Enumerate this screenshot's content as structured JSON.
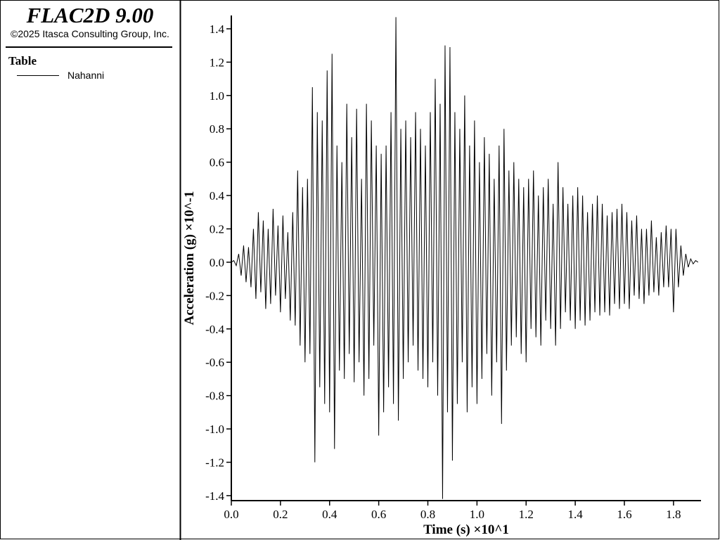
{
  "chart_data": {
    "type": "line",
    "title": "FLAC2D 9.00",
    "subtitle": "©2025 Itasca Consulting Group, Inc.",
    "legend_title": "Table",
    "xlabel": "Time (s) ×10^1",
    "ylabel": "Acceleration (g) ×10^-1",
    "xlim": [
      0,
      1.912
    ],
    "ylim": [
      -1.43,
      1.48
    ],
    "xticks": [
      {
        "value": 0,
        "label": "0.0"
      },
      0.2,
      0.4,
      0.6,
      0.8,
      {
        "value": 1,
        "label": "1.0"
      },
      1.2,
      1.4,
      1.6,
      1.8
    ],
    "yticks": [
      -1.4,
      -1.2,
      {
        "value": -1,
        "label": "-1.0"
      },
      -0.8,
      -0.6,
      -0.4,
      -0.2,
      {
        "value": 0,
        "label": "0.0"
      },
      0.2,
      0.4,
      0.6,
      0.8,
      {
        "value": 1,
        "label": "1.0"
      },
      1.2,
      1.4
    ],
    "x": [
      0,
      0.01,
      0.02,
      0.03,
      0.04,
      0.05,
      0.06,
      0.07,
      0.08,
      0.09,
      0.1,
      0.11,
      0.12,
      0.13,
      0.14,
      0.15,
      0.16,
      0.17,
      0.18,
      0.19,
      0.2,
      0.21,
      0.22,
      0.23,
      0.24,
      0.25,
      0.26,
      0.27,
      0.28,
      0.29,
      0.3,
      0.31,
      0.32,
      0.33,
      0.34,
      0.35,
      0.36,
      0.37,
      0.38,
      0.39,
      0.4,
      0.41,
      0.42,
      0.43,
      0.44,
      0.45,
      0.46,
      0.47,
      0.48,
      0.49,
      0.5,
      0.51,
      0.52,
      0.53,
      0.54,
      0.55,
      0.56,
      0.57,
      0.58,
      0.59,
      0.6,
      0.61,
      0.62,
      0.63,
      0.64,
      0.65,
      0.66,
      0.67,
      0.68,
      0.69,
      0.7,
      0.71,
      0.72,
      0.73,
      0.74,
      0.75,
      0.76,
      0.77,
      0.78,
      0.79,
      0.8,
      0.81,
      0.82,
      0.83,
      0.84,
      0.85,
      0.86,
      0.87,
      0.88,
      0.89,
      0.9,
      0.91,
      0.92,
      0.93,
      0.94,
      0.95,
      0.96,
      0.97,
      0.98,
      0.99,
      1,
      1.01,
      1.02,
      1.03,
      1.04,
      1.05,
      1.06,
      1.07,
      1.08,
      1.09,
      1.1,
      1.11,
      1.12,
      1.13,
      1.14,
      1.15,
      1.16,
      1.17,
      1.18,
      1.19,
      1.2,
      1.21,
      1.22,
      1.23,
      1.24,
      1.25,
      1.26,
      1.27,
      1.28,
      1.29,
      1.3,
      1.31,
      1.32,
      1.33,
      1.34,
      1.35,
      1.36,
      1.37,
      1.38,
      1.39,
      1.4,
      1.41,
      1.42,
      1.43,
      1.44,
      1.45,
      1.46,
      1.47,
      1.48,
      1.49,
      1.5,
      1.51,
      1.52,
      1.53,
      1.54,
      1.55,
      1.56,
      1.57,
      1.58,
      1.59,
      1.6,
      1.61,
      1.62,
      1.63,
      1.64,
      1.65,
      1.66,
      1.67,
      1.68,
      1.69,
      1.7,
      1.71,
      1.72,
      1.73,
      1.74,
      1.75,
      1.76,
      1.77,
      1.78,
      1.79,
      1.8,
      1.81,
      1.82,
      1.83,
      1.84,
      1.85,
      1.86,
      1.87,
      1.88,
      1.89,
      1.9
    ],
    "series": [
      {
        "name": "Nahanni",
        "color": "#000000",
        "values": [
          0,
          0.01,
          -0.02,
          0.05,
          -0.08,
          0.1,
          -0.12,
          0.09,
          -0.15,
          0.2,
          -0.22,
          0.3,
          -0.18,
          0.25,
          -0.28,
          0.2,
          -0.25,
          0.32,
          -0.2,
          0.22,
          -0.3,
          0.28,
          -0.22,
          0.18,
          -0.35,
          0.3,
          -0.38,
          0.55,
          -0.5,
          0.45,
          -0.6,
          0.5,
          -0.55,
          1.05,
          -1.2,
          0.9,
          -0.75,
          0.85,
          -0.85,
          1.15,
          -0.9,
          1.25,
          -1.12,
          0.7,
          -0.65,
          0.6,
          -0.7,
          0.95,
          -0.55,
          0.75,
          -0.72,
          0.92,
          -0.6,
          0.5,
          -0.8,
          0.95,
          -0.7,
          0.85,
          -0.5,
          0.7,
          -1.04,
          0.65,
          -0.9,
          0.7,
          -0.75,
          0.9,
          -0.85,
          1.47,
          -0.95,
          0.8,
          -0.7,
          0.85,
          -0.6,
          0.75,
          -0.5,
          0.9,
          -0.65,
          0.8,
          -0.7,
          0.7,
          -0.75,
          0.9,
          -0.6,
          1.1,
          -0.8,
          0.95,
          -1.42,
          1.3,
          -0.9,
          1.29,
          -1.19,
          0.9,
          -0.85,
          0.8,
          -0.6,
          1.0,
          -0.9,
          0.7,
          -0.75,
          0.85,
          -0.85,
          0.6,
          -0.7,
          0.75,
          -0.55,
          0.65,
          -0.8,
          0.5,
          -0.6,
          0.7,
          -0.97,
          0.8,
          -0.65,
          0.55,
          -0.5,
          0.6,
          -0.45,
          0.5,
          -0.55,
          0.45,
          -0.6,
          0.5,
          -0.4,
          0.55,
          -0.45,
          0.4,
          -0.5,
          0.45,
          -0.35,
          0.5,
          -0.4,
          0.35,
          -0.5,
          0.6,
          -0.4,
          0.45,
          -0.3,
          0.35,
          -0.35,
          0.4,
          -0.4,
          0.45,
          -0.35,
          0.4,
          -0.38,
          0.3,
          -0.35,
          0.35,
          -0.3,
          0.4,
          -0.32,
          0.35,
          -0.3,
          0.28,
          -0.32,
          0.3,
          -0.25,
          0.32,
          -0.28,
          0.35,
          -0.25,
          0.3,
          -0.28,
          0.25,
          -0.2,
          0.28,
          -0.22,
          0.2,
          -0.25,
          0.2,
          -0.2,
          0.25,
          -0.18,
          0.15,
          -0.2,
          0.18,
          -0.15,
          0.22,
          -0.15,
          0.2,
          -0.3,
          0.2,
          -0.15,
          0.1,
          -0.08,
          0.05,
          -0.03,
          0.02,
          -0.01,
          0.01,
          0
        ]
      }
    ]
  }
}
